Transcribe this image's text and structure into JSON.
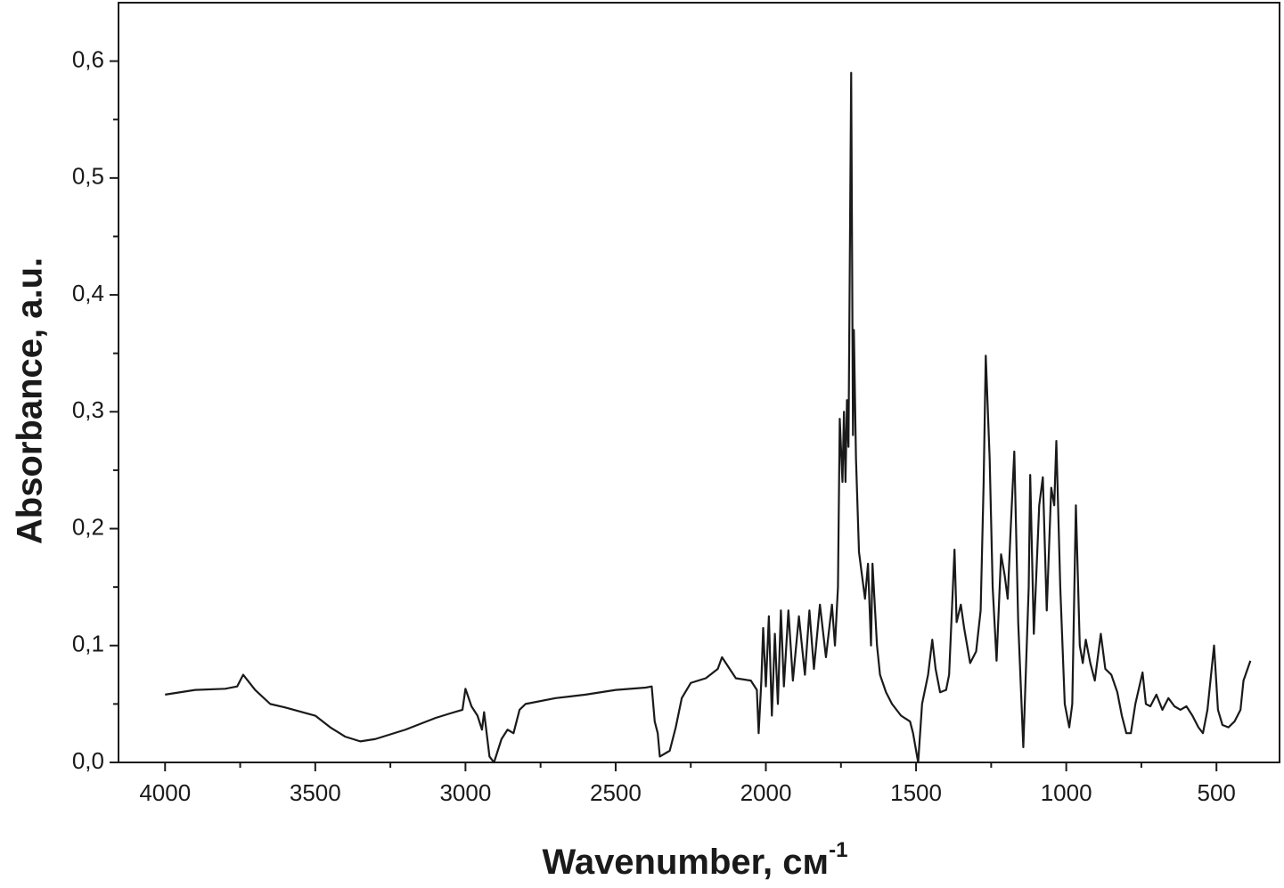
{
  "chart_data": {
    "type": "line",
    "x_label": {
      "text": "Wavenumber, см",
      "superscript": "-1"
    },
    "y_label": "Absorbance, a.u.",
    "x": [
      4000,
      3900,
      3800,
      3760,
      3740,
      3700,
      3650,
      3600,
      3500,
      3450,
      3400,
      3350,
      3300,
      3200,
      3100,
      3050,
      3010,
      3000,
      2980,
      2960,
      2945,
      2938,
      2920,
      2905,
      2880,
      2860,
      2840,
      2820,
      2800,
      2700,
      2600,
      2500,
      2400,
      2380,
      2370,
      2360,
      2353,
      2320,
      2300,
      2280,
      2250,
      2200,
      2160,
      2146,
      2100,
      2050,
      2030,
      2024,
      2015,
      2009,
      2000,
      1990,
      1980,
      1970,
      1960,
      1950,
      1940,
      1925,
      1910,
      1890,
      1870,
      1855,
      1840,
      1820,
      1800,
      1780,
      1770,
      1760,
      1754,
      1745,
      1740,
      1735,
      1730,
      1725,
      1716,
      1710,
      1707,
      1700,
      1690,
      1680,
      1670,
      1660,
      1650,
      1645,
      1630,
      1620,
      1600,
      1580,
      1550,
      1520,
      1510,
      1493,
      1480,
      1460,
      1446,
      1435,
      1420,
      1400,
      1390,
      1372,
      1365,
      1351,
      1340,
      1320,
      1300,
      1285,
      1275,
      1268,
      1255,
      1245,
      1232,
      1217,
      1205,
      1195,
      1185,
      1173,
      1160,
      1143,
      1125,
      1120,
      1108,
      1090,
      1078,
      1065,
      1050,
      1040,
      1033,
      1020,
      1005,
      990,
      980,
      968,
      955,
      945,
      935,
      920,
      905,
      885,
      870,
      850,
      830,
      815,
      800,
      785,
      770,
      746,
      735,
      720,
      700,
      680,
      660,
      640,
      620,
      600,
      580,
      560,
      545,
      530,
      508,
      495,
      480,
      460,
      440,
      420,
      410,
      387
    ],
    "series": [
      {
        "color": "#1a1a1a",
        "values": [
          0.058,
          0.062,
          0.063,
          0.065,
          0.075,
          0.062,
          0.05,
          0.047,
          0.04,
          0.03,
          0.022,
          0.018,
          0.02,
          0.028,
          0.038,
          0.042,
          0.045,
          0.063,
          0.048,
          0.04,
          0.028,
          0.043,
          0.005,
          0.0,
          0.02,
          0.028,
          0.025,
          0.045,
          0.05,
          0.055,
          0.058,
          0.062,
          0.064,
          0.065,
          0.035,
          0.025,
          0.005,
          0.01,
          0.03,
          0.055,
          0.068,
          0.072,
          0.08,
          0.09,
          0.072,
          0.07,
          0.062,
          0.025,
          0.07,
          0.115,
          0.065,
          0.125,
          0.04,
          0.11,
          0.05,
          0.13,
          0.065,
          0.13,
          0.07,
          0.125,
          0.075,
          0.13,
          0.08,
          0.135,
          0.09,
          0.135,
          0.1,
          0.15,
          0.294,
          0.24,
          0.3,
          0.24,
          0.31,
          0.27,
          0.59,
          0.28,
          0.37,
          0.26,
          0.18,
          0.16,
          0.14,
          0.17,
          0.1,
          0.17,
          0.1,
          0.075,
          0.06,
          0.05,
          0.04,
          0.035,
          0.025,
          0.0,
          0.05,
          0.075,
          0.105,
          0.08,
          0.06,
          0.062,
          0.075,
          0.182,
          0.12,
          0.135,
          0.115,
          0.085,
          0.095,
          0.13,
          0.24,
          0.348,
          0.26,
          0.15,
          0.087,
          0.178,
          0.16,
          0.14,
          0.2,
          0.266,
          0.12,
          0.013,
          0.15,
          0.246,
          0.11,
          0.22,
          0.244,
          0.13,
          0.235,
          0.22,
          0.275,
          0.15,
          0.05,
          0.03,
          0.05,
          0.22,
          0.1,
          0.085,
          0.105,
          0.085,
          0.07,
          0.11,
          0.08,
          0.075,
          0.06,
          0.04,
          0.025,
          0.025,
          0.05,
          0.077,
          0.05,
          0.048,
          0.058,
          0.045,
          0.055,
          0.048,
          0.045,
          0.048,
          0.04,
          0.03,
          0.025,
          0.045,
          0.1,
          0.045,
          0.032,
          0.03,
          0.035,
          0.045,
          0.07,
          0.087
        ]
      }
    ],
    "xlim": [
      4155,
      290
    ],
    "xticks": [
      4000,
      3500,
      3000,
      2500,
      2000,
      1500,
      1000,
      500
    ],
    "ylim": [
      0,
      0.65
    ],
    "yticks": [
      {
        "value": 0,
        "label": "0,0"
      },
      {
        "value": 0.1,
        "label": "0,1"
      },
      {
        "value": 0.2,
        "label": "0,2"
      },
      {
        "value": 0.3,
        "label": "0,3"
      },
      {
        "value": 0.4,
        "label": "0,4"
      },
      {
        "value": 0.5,
        "label": "0,5"
      },
      {
        "value": 0.6,
        "label": "0,6"
      }
    ],
    "grid": false
  }
}
